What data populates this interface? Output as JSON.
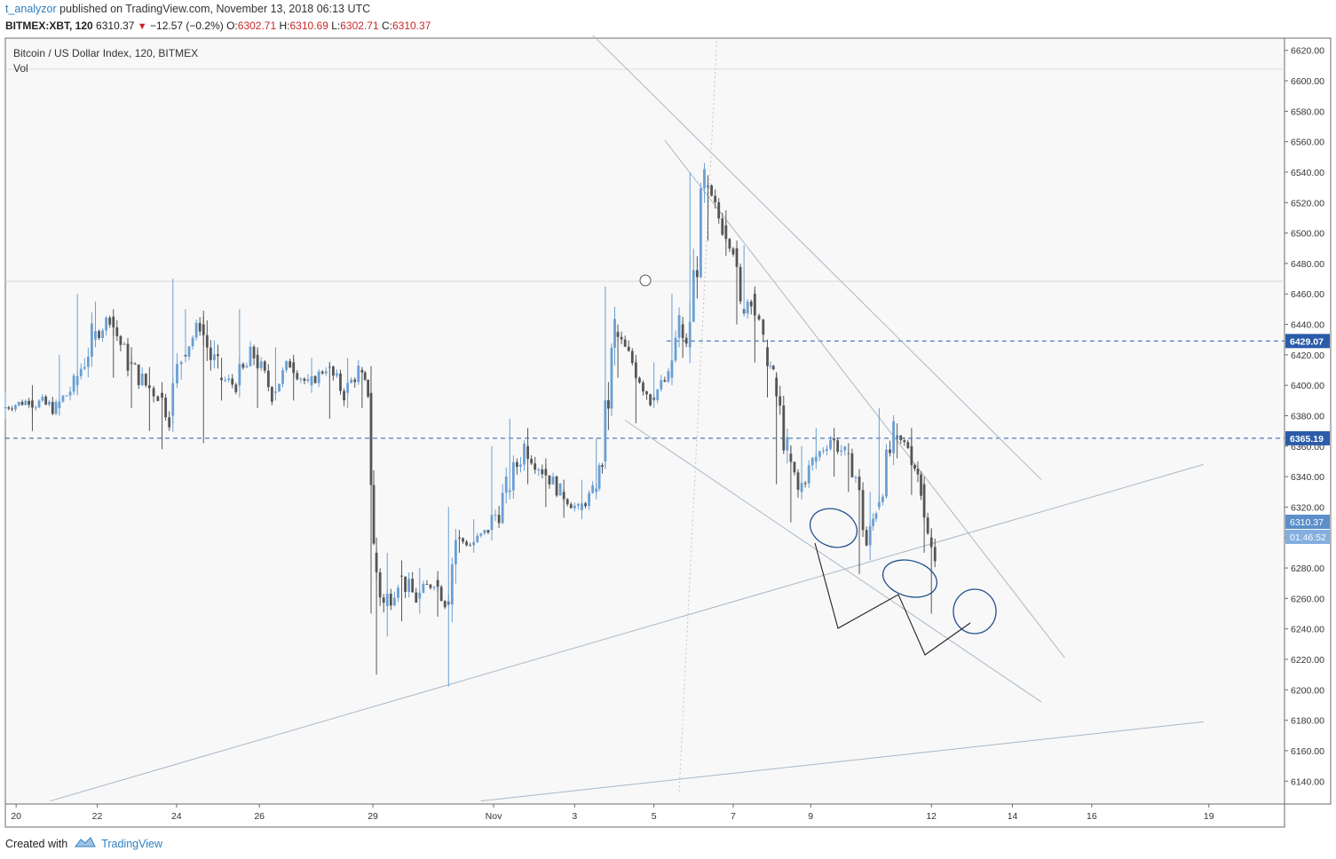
{
  "header": {
    "author": "t_analyzor",
    "published_text": "published on TradingView.com, November 13, 2018 06:13 UTC",
    "symbol": "BITMEX:XBT, 120",
    "last": "6310.37",
    "change_arrow": "▼",
    "change": "−12.57 (−0.2%)",
    "open_label": "O:",
    "open": "6302.71",
    "high_label": "H:",
    "high": "6310.69",
    "low_label": "L:",
    "low": "6302.71",
    "close_label": "C:",
    "close": "6310.37"
  },
  "footer": {
    "created_with": "Created with",
    "brand": "TradingView",
    "logo_icon": "tradingview-logo-icon"
  },
  "colors": {
    "up": "#6a9fd4",
    "down": "#555555",
    "trendline": "#a9b8c8",
    "price_line": "#2a5caa",
    "last_price_tag": "#5b8fc9",
    "annotation": "#1f4f8f"
  },
  "chart_data": {
    "type": "candlestick",
    "title": "Bitcoin / US Dollar Index, 120, BITMEX",
    "subtitle": "Vol",
    "ylim": [
      6125,
      6628
    ],
    "y_ticks": [
      6620.0,
      6600.0,
      6580.0,
      6560.0,
      6540.0,
      6520.0,
      6500.0,
      6480.0,
      6460.0,
      6440.0,
      6420.0,
      6400.0,
      6380.0,
      6360.0,
      6340.0,
      6320.0,
      6300.0,
      6280.0,
      6260.0,
      6240.0,
      6220.0,
      6200.0,
      6180.0,
      6160.0,
      6140.0
    ],
    "x_ticks": [
      "20",
      "22",
      "24",
      "26",
      "29",
      "Nov",
      "3",
      "5",
      "7",
      "9",
      "12",
      "14",
      "16",
      "19"
    ],
    "price_levels": [
      {
        "label": "6429.07",
        "value": 6429.07
      },
      {
        "label": "6365.19",
        "value": 6365.19
      }
    ],
    "last_price": {
      "label": "6310.37",
      "value": 6310.37,
      "countdown": "01:46:52"
    },
    "sessions": [
      {
        "x": 0,
        "open": 6385,
        "close": 6390,
        "high": 6396,
        "low": 6378
      },
      {
        "x": 1.5,
        "open": 6390,
        "close": 6385,
        "high": 6400,
        "low": 6370
      },
      {
        "x": 3,
        "open": 6385,
        "close": 6400,
        "high": 6420,
        "low": 6380
      },
      {
        "x": 4,
        "open": 6400,
        "close": 6430,
        "high": 6460,
        "low": 6395
      },
      {
        "x": 5,
        "open": 6430,
        "close": 6445,
        "high": 6455,
        "low": 6425
      },
      {
        "x": 6,
        "open": 6445,
        "close": 6415,
        "high": 6450,
        "low": 6405
      },
      {
        "x": 7,
        "open": 6415,
        "close": 6400,
        "high": 6425,
        "low": 6385
      },
      {
        "x": 8,
        "open": 6400,
        "close": 6395,
        "high": 6412,
        "low": 6370
      },
      {
        "x": 8.7,
        "open": 6395,
        "close": 6380,
        "high": 6402,
        "low": 6358
      },
      {
        "x": 9.3,
        "open": 6380,
        "close": 6420,
        "high": 6470,
        "low": 6375
      },
      {
        "x": 10,
        "open": 6420,
        "close": 6440,
        "high": 6450,
        "low": 6415
      },
      {
        "x": 11,
        "open": 6440,
        "close": 6405,
        "high": 6445,
        "low": 6362
      },
      {
        "x": 12,
        "open": 6405,
        "close": 6400,
        "high": 6418,
        "low": 6390
      },
      {
        "x": 13,
        "open": 6400,
        "close": 6420,
        "high": 6450,
        "low": 6392
      },
      {
        "x": 14,
        "open": 6420,
        "close": 6395,
        "high": 6425,
        "low": 6385
      },
      {
        "x": 15,
        "open": 6395,
        "close": 6415,
        "high": 6425,
        "low": 6390
      },
      {
        "x": 16,
        "open": 6415,
        "close": 6400,
        "high": 6420,
        "low": 6390
      },
      {
        "x": 17,
        "open": 6400,
        "close": 6412,
        "high": 6418,
        "low": 6395
      },
      {
        "x": 18,
        "open": 6412,
        "close": 6395,
        "high": 6415,
        "low": 6378
      },
      {
        "x": 19,
        "open": 6395,
        "close": 6410,
        "high": 6418,
        "low": 6385
      },
      {
        "x": 19.8,
        "open": 6410,
        "close": 6395,
        "high": 6412,
        "low": 6385
      },
      {
        "x": 20.3,
        "open": 6395,
        "close": 6290,
        "high": 6400,
        "low": 6250
      },
      {
        "x": 20.6,
        "open": 6290,
        "close": 6255,
        "high": 6300,
        "low": 6210
      },
      {
        "x": 21.2,
        "open": 6255,
        "close": 6275,
        "high": 6290,
        "low": 6235
      },
      {
        "x": 22,
        "open": 6275,
        "close": 6260,
        "high": 6285,
        "low": 6245
      },
      {
        "x": 23,
        "open": 6260,
        "close": 6272,
        "high": 6280,
        "low": 6250
      },
      {
        "x": 24,
        "open": 6272,
        "close": 6258,
        "high": 6278,
        "low": 6248
      },
      {
        "x": 24.6,
        "open": 6258,
        "close": 6300,
        "high": 6320,
        "low": 6202
      },
      {
        "x": 25.2,
        "open": 6300,
        "close": 6295,
        "high": 6305,
        "low": 6290
      },
      {
        "x": 26,
        "open": 6295,
        "close": 6305,
        "high": 6312,
        "low": 6290
      },
      {
        "x": 27,
        "open": 6305,
        "close": 6330,
        "high": 6360,
        "low": 6298
      },
      {
        "x": 28,
        "open": 6330,
        "close": 6360,
        "high": 6378,
        "low": 6325
      },
      {
        "x": 29,
        "open": 6360,
        "close": 6345,
        "high": 6372,
        "low": 6335
      },
      {
        "x": 30,
        "open": 6345,
        "close": 6330,
        "high": 6352,
        "low": 6320
      },
      {
        "x": 31,
        "open": 6330,
        "close": 6318,
        "high": 6338,
        "low": 6313
      },
      {
        "x": 32,
        "open": 6318,
        "close": 6330,
        "high": 6338,
        "low": 6312
      },
      {
        "x": 32.8,
        "open": 6330,
        "close": 6350,
        "high": 6365,
        "low": 6325
      },
      {
        "x": 33.3,
        "open": 6350,
        "close": 6435,
        "high": 6465,
        "low": 6345
      },
      {
        "x": 34,
        "open": 6435,
        "close": 6415,
        "high": 6440,
        "low": 6405
      },
      {
        "x": 35,
        "open": 6415,
        "close": 6392,
        "high": 6420,
        "low": 6375
      },
      {
        "x": 36,
        "open": 6392,
        "close": 6405,
        "high": 6415,
        "low": 6385
      },
      {
        "x": 37,
        "open": 6405,
        "close": 6440,
        "high": 6460,
        "low": 6400
      },
      {
        "x": 37.6,
        "open": 6440,
        "close": 6425,
        "high": 6445,
        "low": 6418
      },
      {
        "x": 38,
        "open": 6425,
        "close": 6530,
        "high": 6540,
        "low": 6420
      },
      {
        "x": 39,
        "open": 6530,
        "close": 6505,
        "high": 6538,
        "low": 6495
      },
      {
        "x": 40,
        "open": 6505,
        "close": 6490,
        "high": 6515,
        "low": 6485
      },
      {
        "x": 40.6,
        "open": 6490,
        "close": 6450,
        "high": 6495,
        "low": 6440
      },
      {
        "x": 41,
        "open": 6450,
        "close": 6460,
        "high": 6492,
        "low": 6445
      },
      {
        "x": 41.6,
        "open": 6460,
        "close": 6425,
        "high": 6465,
        "low": 6415
      },
      {
        "x": 42.3,
        "open": 6425,
        "close": 6405,
        "high": 6430,
        "low": 6392
      },
      {
        "x": 42.8,
        "open": 6405,
        "close": 6355,
        "high": 6408,
        "low": 6335
      },
      {
        "x": 43.6,
        "open": 6355,
        "close": 6330,
        "high": 6360,
        "low": 6310
      },
      {
        "x": 44.2,
        "open": 6330,
        "close": 6350,
        "high": 6360,
        "low": 6325
      },
      {
        "x": 45,
        "open": 6350,
        "close": 6365,
        "high": 6372,
        "low": 6345
      },
      {
        "x": 46,
        "open": 6365,
        "close": 6355,
        "high": 6372,
        "low": 6340
      },
      {
        "x": 46.8,
        "open": 6355,
        "close": 6340,
        "high": 6362,
        "low": 6330
      },
      {
        "x": 47.4,
        "open": 6340,
        "close": 6295,
        "high": 6345,
        "low": 6276
      },
      {
        "x": 48,
        "open": 6295,
        "close": 6320,
        "high": 6330,
        "low": 6285
      },
      {
        "x": 48.5,
        "open": 6320,
        "close": 6365,
        "high": 6385,
        "low": 6318
      },
      {
        "x": 49.5,
        "open": 6365,
        "close": 6360,
        "high": 6375,
        "low": 6352
      },
      {
        "x": 50.3,
        "open": 6360,
        "close": 6335,
        "high": 6372,
        "low": 6328
      },
      {
        "x": 51,
        "open": 6335,
        "close": 6300,
        "high": 6340,
        "low": 6290
      },
      {
        "x": 51.4,
        "open": 6300,
        "close": 6282,
        "high": 6305,
        "low": 6250
      },
      {
        "x": 51.8,
        "open": 6282,
        "close": 6310,
        "high": 6312,
        "low": 6278
      }
    ],
    "trendlines": [
      {
        "x1": 32.6,
        "y1": 6630,
        "x2": 57.5,
        "y2": 6338
      },
      {
        "x1": 36.6,
        "y1": 6561,
        "x2": 58.8,
        "y2": 6221
      },
      {
        "x1": 34.4,
        "y1": 6377,
        "x2": 57.5,
        "y2": 6192
      },
      {
        "x1": 2.5,
        "y1": 6127,
        "x2": 66.5,
        "y2": 6348
      },
      {
        "x1": 26.4,
        "y1": 6127,
        "x2": 66.5,
        "y2": 6179
      },
      {
        "x1": 37.4,
        "y1": 6133,
        "x2": 39.5,
        "y2": 6629
      }
    ]
  }
}
